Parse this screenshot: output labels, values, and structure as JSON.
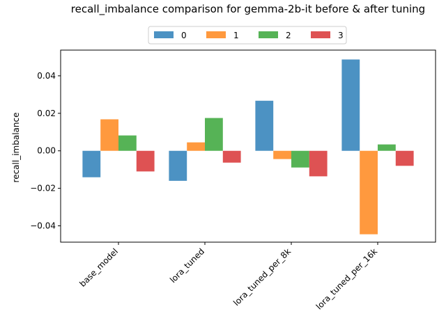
{
  "chart_data": {
    "type": "bar",
    "title": "recall_imbalance comparison for gemma-2b-it before & after tuning",
    "xlabel": "",
    "ylabel": "recall_imbalance",
    "categories": [
      "base_model",
      "lora_tuned",
      "lora_tuned_per_8k",
      "lora_tuned_per_16k"
    ],
    "series": [
      {
        "name": "0",
        "color": "#1f77b4",
        "values": [
          -0.0141,
          -0.016,
          0.0267,
          0.0487
        ]
      },
      {
        "name": "1",
        "color": "#ff7f0e",
        "values": [
          0.0168,
          0.0045,
          -0.0044,
          -0.0445
        ]
      },
      {
        "name": "2",
        "color": "#2ca02c",
        "values": [
          0.0082,
          0.0175,
          -0.0089,
          0.0034
        ]
      },
      {
        "name": "3",
        "color": "#d62728",
        "values": [
          -0.011,
          -0.0063,
          -0.0136,
          -0.008
        ]
      }
    ],
    "ylim": [
      -0.0487,
      0.0537
    ],
    "yticks": [
      -0.04,
      -0.02,
      0.0,
      0.02,
      0.04
    ],
    "ytick_labels": [
      "−0.04",
      "−0.02",
      "0.00",
      "0.02",
      "0.04"
    ],
    "legend_position": "top-center",
    "grid": false,
    "bar_opacity": 0.8
  }
}
